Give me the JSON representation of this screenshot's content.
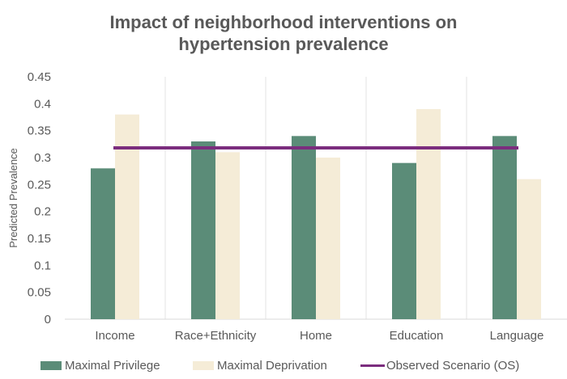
{
  "chart_data": {
    "type": "bar",
    "title_line1": "Impact of neighborhood interventions on",
    "title_line2": "hypertension prevalence",
    "xlabel": "",
    "ylabel": "Predicted Prevalence",
    "categories": [
      "Income",
      "Race+Ethnicity",
      "Home",
      "Education",
      "Language"
    ],
    "series": [
      {
        "name": "Maximal Privilege",
        "color": "#5b8c78",
        "values": [
          0.28,
          0.33,
          0.34,
          0.29,
          0.34
        ]
      },
      {
        "name": "Maximal Deprivation",
        "color": "#f5ecd7",
        "values": [
          0.38,
          0.31,
          0.3,
          0.39,
          0.26
        ]
      }
    ],
    "reference_line": {
      "name": "Observed Scenario (OS)",
      "color": "#7b2d7e",
      "value": 0.318
    },
    "ylim": [
      0,
      0.45
    ],
    "yticks": [
      "0",
      "0.05",
      "0.1",
      "0.15",
      "0.2",
      "0.25",
      "0.3",
      "0.35",
      "0.4",
      "0.45"
    ],
    "grid": "vertical separators between categories",
    "legend_position": "bottom"
  }
}
